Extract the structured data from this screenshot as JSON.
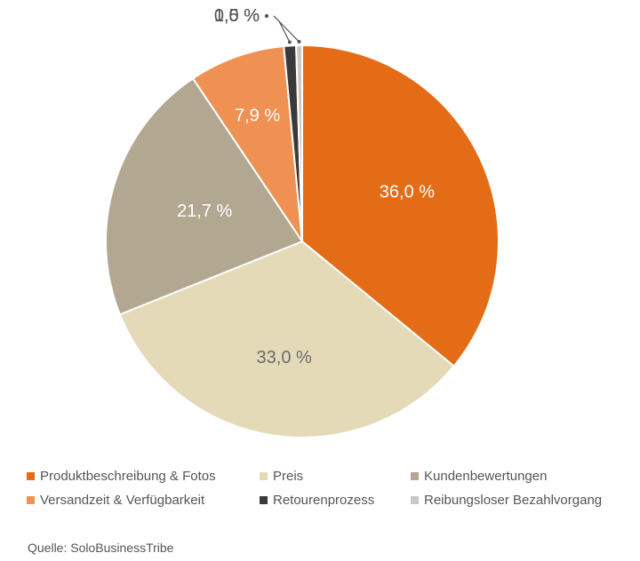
{
  "chart_data": {
    "type": "pie",
    "source": "Quelle: SoloBusinessTribe",
    "series": [
      {
        "name": "Produktbeschreibung & Fotos",
        "value": 36.0,
        "label": "36,0 %",
        "color": "#E46C17",
        "label_color": "#ffffff"
      },
      {
        "name": "Preis",
        "value": 33.0,
        "label": "33,0 %",
        "color": "#E5DAB8",
        "label_color": "#6b6b6b"
      },
      {
        "name": "Kundenbewertungen",
        "value": 21.7,
        "label": "21,7 %",
        "color": "#B2A791",
        "label_color": "#ffffff"
      },
      {
        "name": "Versandzeit & Verfügbarkeit",
        "value": 7.9,
        "label": "7,9 %",
        "color": "#EE9153",
        "label_color": "#ffffff"
      },
      {
        "name": "Retourenprozess",
        "value": 1.0,
        "label": "1,0 %",
        "color": "#3A3A3A",
        "label_color": "#555555"
      },
      {
        "name": "Reibungsloser Bezahlvorgang",
        "value": 0.5,
        "label": "0,5 %",
        "color": "#C9C9C9",
        "label_color": "#555555"
      }
    ]
  }
}
